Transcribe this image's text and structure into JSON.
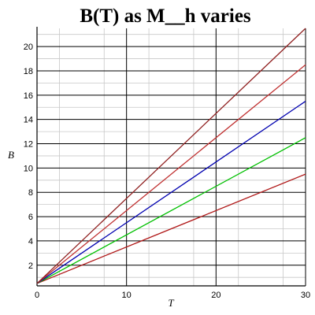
{
  "chart_data": {
    "type": "line",
    "title": "B(T) as M__h varies",
    "xlabel": "T",
    "ylabel": "B",
    "xlim": [
      0,
      30
    ],
    "ylim": [
      0.3,
      21.5
    ],
    "grid": true,
    "x_ticks": [
      "0",
      "10",
      "20",
      "30"
    ],
    "y_ticks": [
      "2",
      "4",
      "6",
      "8",
      "10",
      "12",
      "14",
      "16",
      "18",
      "20"
    ],
    "x": [
      0,
      30
    ],
    "series": [
      {
        "color": "#b01818",
        "values": [
          0.5,
          9.5
        ]
      },
      {
        "color": "#00c000",
        "values": [
          0.5,
          12.5
        ]
      },
      {
        "color": "#0000b0",
        "values": [
          0.5,
          15.5
        ]
      },
      {
        "color": "#c03030",
        "values": [
          0.5,
          18.5
        ]
      },
      {
        "color": "#902020",
        "values": [
          0.5,
          21.5
        ]
      }
    ]
  }
}
